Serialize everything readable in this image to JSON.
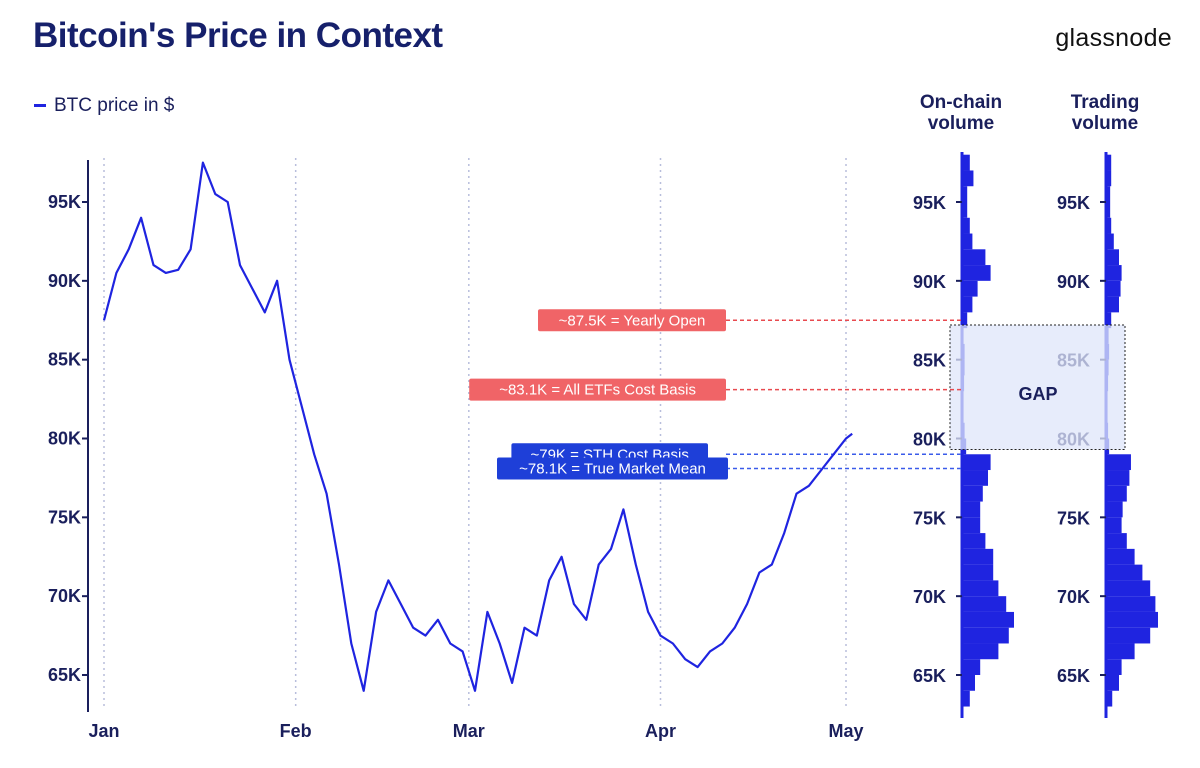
{
  "header": {
    "title": "Bitcoin's Price in Context",
    "brand": "glassnode"
  },
  "legend": {
    "label": "BTC price in $"
  },
  "columns": {
    "onchain": [
      "On-chain",
      "volume"
    ],
    "trading": [
      "Trading",
      "volume"
    ]
  },
  "colors": {
    "price": "#1f24e0",
    "bars": "#1f24e0",
    "red_badge": "#f06467",
    "blue_badge": "#1e3fd8",
    "gap_fill": "#dfe6fa",
    "axis": "#1a1f5c"
  },
  "chart_data": [
    {
      "type": "line",
      "title": "Bitcoin's Price in Context",
      "series": [
        {
          "name": "BTC price in $",
          "x": [
            "2025-01-01",
            "2025-01-03",
            "2025-01-05",
            "2025-01-07",
            "2025-01-09",
            "2025-01-11",
            "2025-01-13",
            "2025-01-15",
            "2025-01-17",
            "2025-01-19",
            "2025-01-21",
            "2025-01-23",
            "2025-01-25",
            "2025-01-27",
            "2025-01-29",
            "2025-01-31",
            "2025-02-02",
            "2025-02-04",
            "2025-02-06",
            "2025-02-08",
            "2025-02-10",
            "2025-02-12",
            "2025-02-14",
            "2025-02-16",
            "2025-02-18",
            "2025-02-20",
            "2025-02-22",
            "2025-02-24",
            "2025-02-26",
            "2025-02-28",
            "2025-03-02",
            "2025-03-04",
            "2025-03-06",
            "2025-03-08",
            "2025-03-10",
            "2025-03-12",
            "2025-03-14",
            "2025-03-16",
            "2025-03-18",
            "2025-03-20",
            "2025-03-22",
            "2025-03-24",
            "2025-03-26",
            "2025-03-28",
            "2025-03-30",
            "2025-04-01",
            "2025-04-03",
            "2025-04-05",
            "2025-04-07",
            "2025-04-09",
            "2025-04-11",
            "2025-04-13",
            "2025-04-15",
            "2025-04-17",
            "2025-04-19",
            "2025-04-21",
            "2025-04-23",
            "2025-04-25",
            "2025-04-27",
            "2025-04-29",
            "2025-05-01",
            "2025-05-02"
          ],
          "values": [
            87.5,
            90.5,
            92,
            94,
            91,
            90.5,
            90.7,
            92,
            97.5,
            95.5,
            95,
            91,
            89.5,
            88,
            90,
            85,
            82,
            79,
            76.5,
            72,
            67,
            64,
            69,
            71,
            69.5,
            68,
            67.5,
            68.5,
            67,
            66.5,
            64,
            69,
            67,
            64.5,
            68,
            67.5,
            71,
            72.5,
            69.5,
            68.5,
            72,
            73,
            75.5,
            72,
            69,
            67.5,
            67,
            66,
            65.5,
            66.5,
            67,
            68,
            69.5,
            71.5,
            72,
            74,
            76.5,
            77,
            78,
            79,
            80,
            80.3
          ]
        }
      ],
      "xlabel": "",
      "ylabel": "",
      "xticks": [
        "Jan",
        "Feb",
        "Mar",
        "Apr",
        "May"
      ],
      "yticks": [
        "65K",
        "70K",
        "75K",
        "80K",
        "85K",
        "90K",
        "95K"
      ],
      "ylim": [
        63,
        98
      ],
      "grid": "vertical dotted at month starts",
      "annotations": [
        {
          "text": "~87.5K = Yearly Open",
          "value": 87.5,
          "color": "red"
        },
        {
          "text": "~83.1K = All ETFs Cost Basis",
          "value": 83.1,
          "color": "red"
        },
        {
          "text": "~79K = STH Cost Basis",
          "value": 79.0,
          "color": "blue"
        },
        {
          "text": "~78.1K = True Market Mean",
          "value": 78.1,
          "color": "blue"
        }
      ]
    },
    {
      "type": "bar",
      "title": "On-chain volume",
      "orientation": "horizontal",
      "yticks": [
        "65K",
        "70K",
        "75K",
        "80K",
        "85K",
        "90K",
        "95K"
      ],
      "categories": [
        63,
        64,
        65,
        66,
        67,
        68,
        69,
        70,
        71,
        72,
        73,
        74,
        75,
        76,
        77,
        78,
        79,
        80,
        81,
        82,
        83,
        84,
        85,
        86,
        87,
        88,
        89,
        90,
        91,
        92,
        93,
        94,
        95,
        96,
        97
      ],
      "values": [
        0.15,
        0.25,
        0.35,
        0.7,
        0.9,
        1.0,
        0.85,
        0.7,
        0.6,
        0.6,
        0.45,
        0.35,
        0.35,
        0.4,
        0.5,
        0.55,
        0.08,
        0.05,
        0.03,
        0.03,
        0.04,
        0.05,
        0.05,
        0.03,
        0.1,
        0.2,
        0.3,
        0.55,
        0.45,
        0.2,
        0.15,
        0.1,
        0.1,
        0.22,
        0.15
      ]
    },
    {
      "type": "bar",
      "title": "Trading volume",
      "orientation": "horizontal",
      "yticks": [
        "65K",
        "70K",
        "75K",
        "80K",
        "85K",
        "90K",
        "95K"
      ],
      "categories": [
        63,
        64,
        65,
        66,
        67,
        68,
        69,
        70,
        71,
        72,
        73,
        74,
        75,
        76,
        77,
        78,
        79,
        80,
        81,
        82,
        83,
        84,
        85,
        86,
        87,
        88,
        89,
        90,
        91,
        92,
        93,
        94,
        95,
        96,
        97
      ],
      "values": [
        0.12,
        0.25,
        0.3,
        0.55,
        0.85,
        1.0,
        0.95,
        0.85,
        0.7,
        0.55,
        0.4,
        0.3,
        0.32,
        0.4,
        0.45,
        0.48,
        0.06,
        0.04,
        0.03,
        0.03,
        0.04,
        0.05,
        0.06,
        0.05,
        0.1,
        0.25,
        0.28,
        0.3,
        0.25,
        0.15,
        0.1,
        0.08,
        0.08,
        0.1,
        0.1
      ]
    }
  ],
  "gap_label": "GAP"
}
